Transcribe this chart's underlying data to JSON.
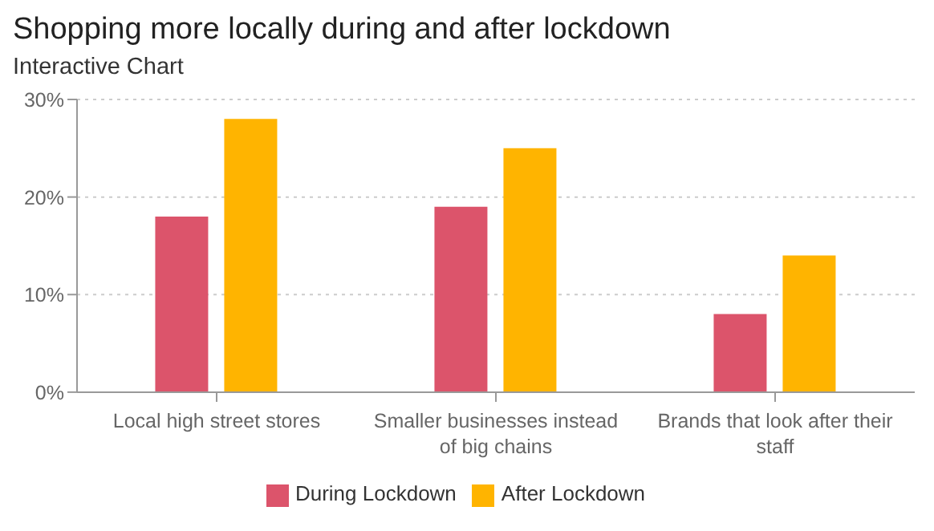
{
  "chart_data": {
    "type": "bar",
    "title": "Shopping more locally during and after lockdown",
    "subtitle": "Interactive Chart",
    "categories": [
      "Local high street stores",
      "Smaller businesses instead of big chains",
      "Brands that look after their staff"
    ],
    "series": [
      {
        "name": "During Lockdown",
        "color": "#dc546b",
        "values": [
          18,
          19,
          8
        ]
      },
      {
        "name": "After Lockdown",
        "color": "#ffb400",
        "values": [
          28,
          25,
          14
        ]
      }
    ],
    "ylim": [
      0,
      30
    ],
    "yticks": [
      {
        "value": 0,
        "label": "0%"
      },
      {
        "value": 10,
        "label": "10%"
      },
      {
        "value": 20,
        "label": "20%"
      },
      {
        "value": 30,
        "label": "30%"
      }
    ],
    "grid": "y",
    "legend": "bottom"
  }
}
